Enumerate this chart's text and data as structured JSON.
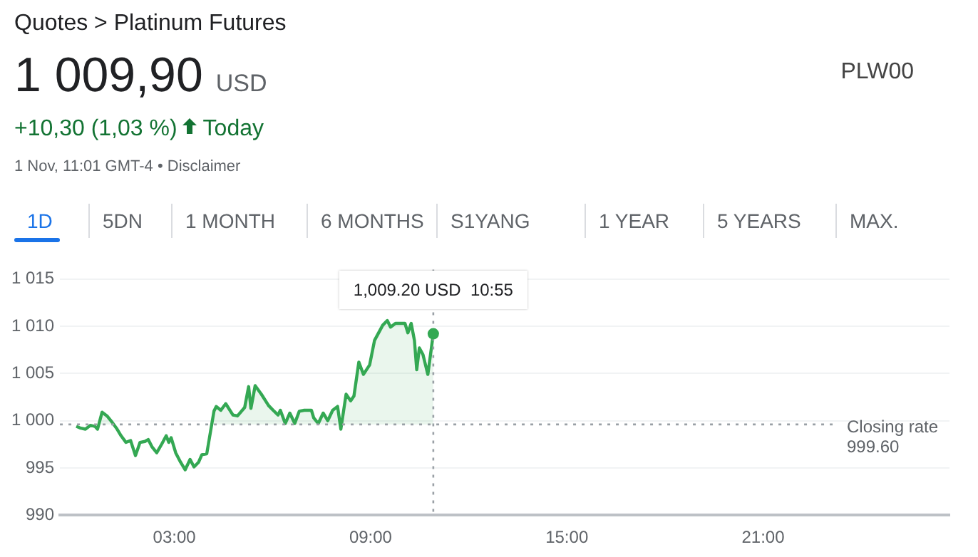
{
  "chart_data": {
    "type": "area",
    "title": "Quotes > Platinum Futures",
    "subtitle": "1 009,90 USD",
    "annotations": [
      "PLW00",
      "+10,30 (1,03 %)",
      "Today",
      "1 Nov, 11:01 GMT-4 • Disclaimer",
      "1D",
      "5DN",
      "1 MONTH",
      "6 MONTHS",
      "S1YANG",
      "1 YEAR",
      "5 YEARS",
      "MAX.",
      {
        "text": "1,009.20 USD  10:55",
        "x": 10.917,
        "y": 1009.2
      }
    ],
    "x": [
      0.0,
      0.14,
      0.28,
      0.43,
      0.57,
      0.65,
      0.79,
      0.94,
      1.08,
      1.23,
      1.37,
      1.52,
      1.66,
      1.81,
      1.95,
      2.1,
      2.2,
      2.32,
      2.46,
      2.61,
      2.75,
      2.83,
      2.9,
      3.04,
      3.19,
      3.33,
      3.48,
      3.6,
      3.74,
      3.84,
      3.99,
      4.21,
      4.28,
      4.42,
      4.57,
      4.79,
      4.93,
      5.15,
      5.27,
      5.34,
      5.47,
      5.66,
      5.88,
      6.02,
      6.17,
      6.24,
      6.39,
      6.53,
      6.68,
      6.82,
      6.97,
      7.19,
      7.26,
      7.4,
      7.55,
      7.69,
      7.84,
      7.99,
      8.09,
      8.25,
      8.39,
      8.49,
      8.64,
      8.78,
      8.97,
      9.12,
      9.37,
      9.51,
      9.61,
      9.76,
      10.05,
      10.14,
      10.24,
      10.34,
      10.41,
      10.49,
      10.6,
      10.75,
      10.917
    ],
    "series": [
      {
        "color": "#34a853",
        "values": [
          999.4,
          999.2,
          999.1,
          999.5,
          999.4,
          999.1,
          1000.9,
          1000.5,
          999.9,
          999.2,
          998.4,
          997.7,
          997.9,
          996.3,
          997.7,
          997.8,
          998.0,
          997.2,
          996.6,
          997.5,
          998.4,
          997.7,
          998.2,
          996.6,
          995.6,
          994.8,
          995.9,
          995.1,
          995.6,
          996.4,
          996.5,
          1001.0,
          1001.5,
          1001.1,
          1001.8,
          1000.6,
          1000.5,
          1001.4,
          1003.6,
          1001.3,
          1003.7,
          1002.8,
          1001.6,
          1001.1,
          1000.6,
          1001.1,
          999.7,
          1000.8,
          999.7,
          1001.0,
          1001.1,
          1001.1,
          1000.3,
          999.7,
          1000.8,
          1000.0,
          1001.1,
          1001.5,
          999.1,
          1002.8,
          1002.1,
          1002.6,
          1006.2,
          1004.9,
          1005.9,
          1008.5,
          1010.1,
          1010.6,
          1009.9,
          1010.3,
          1010.3,
          1009.3,
          1010.3,
          1008.5,
          1005.4,
          1007.7,
          1007.0,
          1004.9,
          1009.2
        ]
      }
    ],
    "xlim": [
      -0.5,
      26.7
    ],
    "xticks": [
      {
        "value": 3,
        "label": "03:00"
      },
      {
        "value": 9,
        "label": "09:00"
      },
      {
        "value": 15,
        "label": "15:00"
      },
      {
        "value": 21,
        "label": "21:00"
      }
    ],
    "ylim": [
      990,
      1016
    ],
    "yticks": [
      {
        "value": 990,
        "label": "990"
      },
      {
        "value": 995,
        "label": "995"
      },
      {
        "value": 1000,
        "label": "1 000"
      },
      {
        "value": 1005,
        "label": "1 005"
      },
      {
        "value": 1010,
        "label": "1 010"
      },
      {
        "value": 1015,
        "label": "1 015"
      }
    ],
    "ref_lines": [
      {
        "axis": "y",
        "value": 999.6,
        "label": "Closing rate 999.60",
        "line_style": "dotted"
      },
      {
        "axis": "x",
        "value": 10.917,
        "line_style": "dotted"
      }
    ],
    "grid": "y",
    "marker": "none",
    "line_style": "solid",
    "legend": false
  }
}
